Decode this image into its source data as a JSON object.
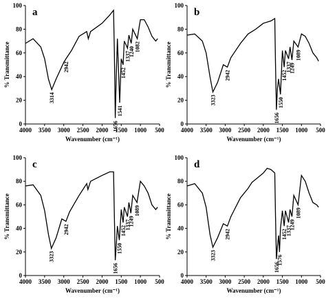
{
  "chart_data": [
    {
      "type": "line",
      "label": "a",
      "xlabel": "Wavenumber (cm⁻¹)",
      "ylabel": "% Transmittance",
      "color": "#000000",
      "xlim": [
        4000,
        500
      ],
      "ylim": [
        0,
        100
      ],
      "xticks": [
        4000,
        3500,
        3000,
        2500,
        2000,
        1500,
        1000,
        500
      ],
      "yticks": [
        0,
        20,
        40,
        60,
        80,
        100
      ],
      "x": [
        4000,
        3800,
        3600,
        3500,
        3400,
        3314,
        3200,
        3000,
        2942,
        2800,
        2600,
        2400,
        2360,
        2300,
        2000,
        1800,
        1700,
        1680,
        1656,
        1630,
        1600,
        1541,
        1500,
        1452,
        1420,
        1337,
        1300,
        1240,
        1200,
        1082,
        1000,
        900,
        800,
        700,
        600,
        550
      ],
      "values": [
        68,
        72,
        65,
        55,
        38,
        29,
        38,
        52,
        55,
        62,
        74,
        78,
        72,
        78,
        85,
        92,
        96,
        60,
        5,
        40,
        72,
        18,
        55,
        50,
        70,
        64,
        75,
        68,
        80,
        72,
        88,
        88,
        82,
        74,
        70,
        72
      ],
      "peaks": [
        3314,
        2942,
        1656,
        1541,
        1452,
        1337,
        1240,
        1082
      ]
    },
    {
      "type": "line",
      "label": "b",
      "xlabel": "Wavenumber (cm⁻¹)",
      "ylabel": "% Transmittance",
      "color": "#000000",
      "xlim": [
        4000,
        500
      ],
      "ylim": [
        0,
        100
      ],
      "xticks": [
        4000,
        3500,
        3000,
        2500,
        2000,
        1500,
        1000,
        500
      ],
      "yticks": [
        0,
        20,
        40,
        60,
        80,
        100
      ],
      "x": [
        4000,
        3800,
        3600,
        3500,
        3400,
        3323,
        3200,
        3050,
        2942,
        2850,
        2600,
        2400,
        2200,
        2000,
        1800,
        1700,
        1680,
        1656,
        1630,
        1600,
        1550,
        1500,
        1452,
        1420,
        1337,
        1300,
        1249,
        1200,
        1089,
        1000,
        900,
        800,
        700,
        600,
        550
      ],
      "values": [
        75,
        76,
        70,
        60,
        40,
        27,
        35,
        50,
        48,
        56,
        68,
        76,
        80,
        85,
        87,
        89,
        50,
        12,
        30,
        38,
        25,
        62,
        48,
        62,
        55,
        65,
        54,
        70,
        65,
        76,
        74,
        68,
        60,
        56,
        53
      ],
      "peaks": [
        3323,
        2942,
        1656,
        1550,
        1452,
        1337,
        1249,
        1089
      ]
    },
    {
      "type": "line",
      "label": "c",
      "xlabel": "Wavenumber (cm⁻¹)",
      "ylabel": "% Transmittance",
      "color": "#000000",
      "xlim": [
        4000,
        500
      ],
      "ylim": [
        0,
        100
      ],
      "xticks": [
        4000,
        3500,
        3000,
        2500,
        2000,
        1500,
        1000,
        500
      ],
      "yticks": [
        0,
        20,
        40,
        60,
        80,
        100
      ],
      "x": [
        4000,
        3800,
        3600,
        3500,
        3400,
        3323,
        3200,
        3050,
        2942,
        2850,
        2600,
        2400,
        2370,
        2300,
        2000,
        1800,
        1700,
        1680,
        1656,
        1630,
        1600,
        1550,
        1500,
        1452,
        1420,
        1337,
        1300,
        1249,
        1200,
        1089,
        1000,
        900,
        800,
        700,
        600,
        550
      ],
      "values": [
        76,
        77,
        68,
        55,
        35,
        23,
        32,
        48,
        46,
        54,
        68,
        78,
        73,
        80,
        85,
        88,
        88,
        50,
        13,
        25,
        42,
        30,
        56,
        45,
        58,
        50,
        62,
        53,
        68,
        62,
        80,
        76,
        70,
        60,
        56,
        58
      ],
      "peaks": [
        3323,
        2942,
        1656,
        1550,
        1452,
        1337,
        1249,
        1089
      ]
    },
    {
      "type": "line",
      "label": "d",
      "xlabel": "Wavenumber (cm⁻¹)",
      "ylabel": "% Transmittance",
      "color": "#000000",
      "xlim": [
        4000,
        500
      ],
      "ylim": [
        0,
        100
      ],
      "xticks": [
        4000,
        3500,
        3000,
        2500,
        2000,
        1500,
        1000,
        500
      ],
      "yticks": [
        0,
        20,
        40,
        60,
        80,
        100
      ],
      "x": [
        4000,
        3800,
        3600,
        3500,
        3400,
        3323,
        3200,
        3050,
        2942,
        2850,
        2600,
        2400,
        2300,
        2000,
        1900,
        1800,
        1700,
        1680,
        1656,
        1630,
        1600,
        1576,
        1550,
        1500,
        1452,
        1420,
        1337,
        1300,
        1249,
        1200,
        1089,
        1000,
        900,
        800,
        700,
        600,
        550
      ],
      "values": [
        76,
        78,
        70,
        58,
        35,
        24,
        32,
        44,
        42,
        50,
        66,
        74,
        79,
        87,
        91,
        90,
        87,
        50,
        14,
        25,
        34,
        20,
        40,
        55,
        42,
        55,
        45,
        56,
        50,
        68,
        60,
        85,
        80,
        70,
        62,
        60,
        58
      ],
      "peaks": [
        3323,
        2942,
        1656,
        1576,
        1452,
        1337,
        1249,
        1089
      ]
    }
  ]
}
